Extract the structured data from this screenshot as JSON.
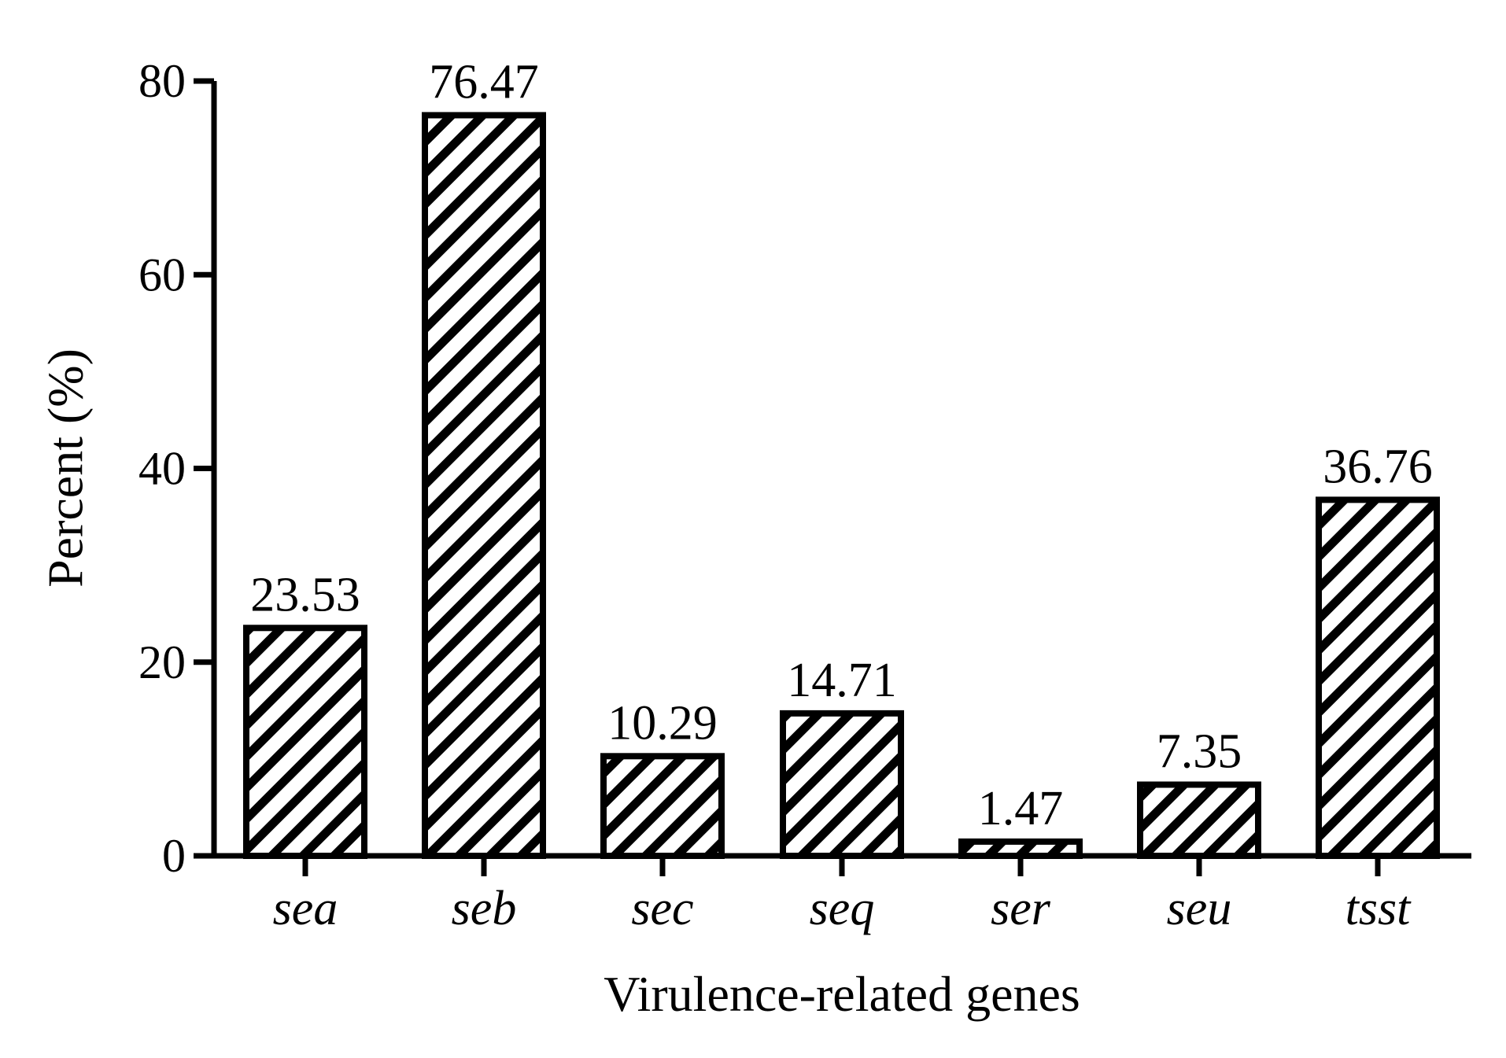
{
  "chart_data": {
    "type": "bar",
    "title": "",
    "xlabel": "Virulence-related genes",
    "ylabel": "Percent (%)",
    "categories": [
      "sea",
      "seb",
      "sec",
      "seq",
      "ser",
      "seu",
      "tsst"
    ],
    "values": [
      23.53,
      76.47,
      10.29,
      14.71,
      1.47,
      7.35,
      36.76
    ],
    "value_labels": [
      "23.53",
      "76.47",
      "10.29",
      "14.71",
      "1.47",
      "7.35",
      "36.76"
    ],
    "ylim": [
      0,
      80
    ],
    "yticks": [
      0,
      20,
      40,
      60,
      80
    ],
    "ytick_labels": [
      "0",
      "20",
      "40",
      "60",
      "80"
    ],
    "category_label_style": "italic",
    "bar_fill": "diagonal hatch",
    "colors": {
      "bar_stroke": "#000000",
      "bar_fill": "#ffffff",
      "hatch": "#000000",
      "axis": "#000000",
      "text": "#000000"
    },
    "grid": false,
    "legend": "none"
  }
}
